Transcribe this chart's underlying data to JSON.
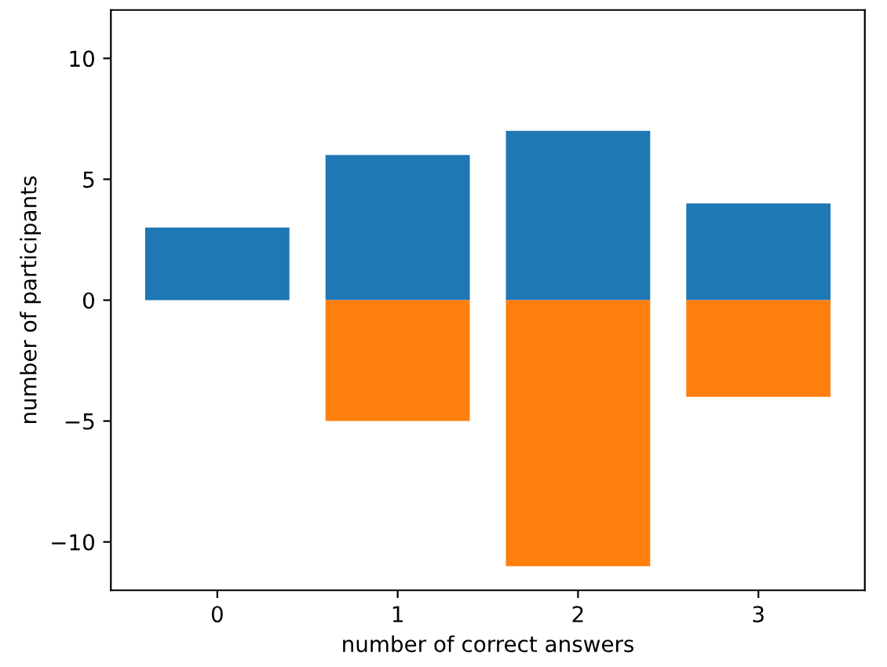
{
  "chart_data": {
    "type": "bar",
    "xlabel": "number of correct answers",
    "ylabel": "number of participants",
    "categories": [
      "0",
      "1",
      "2",
      "3"
    ],
    "series": [
      {
        "color": "#1f77b4",
        "values": [
          3,
          6,
          7,
          4
        ]
      },
      {
        "color": "#ff7f0e",
        "values": [
          0,
          -5,
          -11,
          -4
        ]
      }
    ],
    "ylim": [
      -12,
      12
    ],
    "yticks": [
      {
        "value": -10,
        "label": "−10"
      },
      {
        "value": -5,
        "label": "−5"
      },
      0,
      5,
      10
    ],
    "stacked": true
  }
}
